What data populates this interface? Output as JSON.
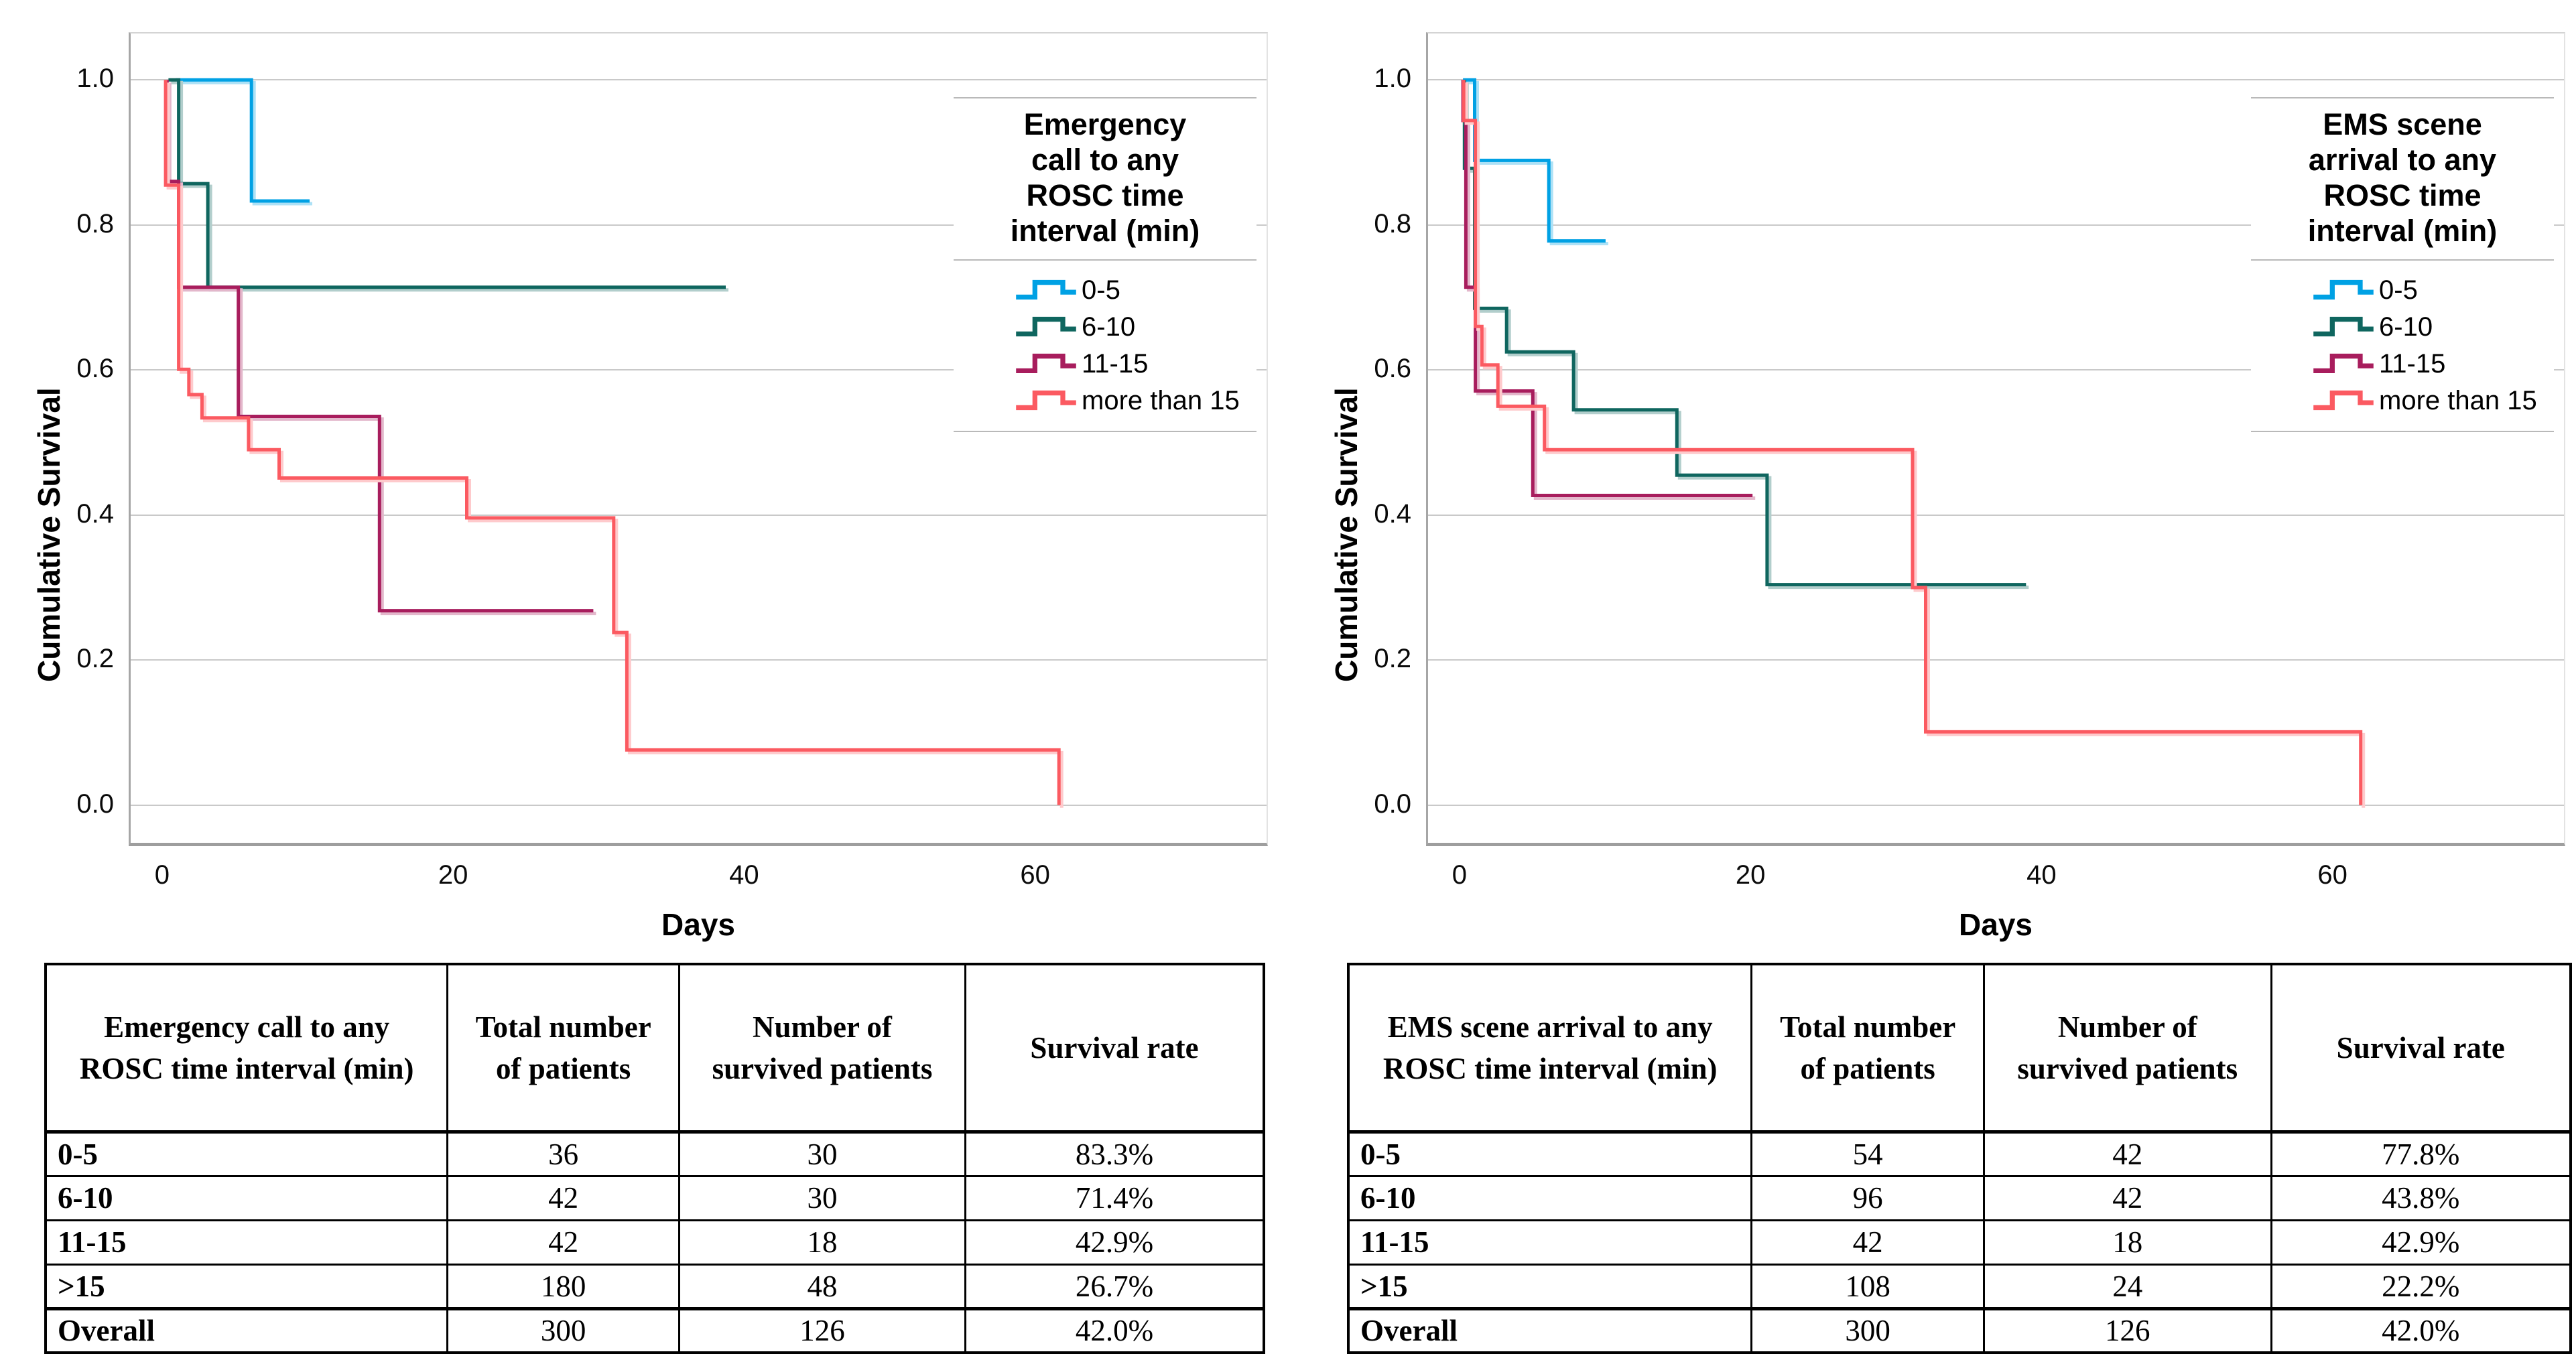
{
  "chart_data": [
    {
      "type": "line",
      "subtype": "kaplan-meier-step",
      "y_axis_label": "Cumulative Survival",
      "x_axis_label": "Days",
      "legend_title": "Emergency call to any ROSC time interval (min)",
      "legend_title_lines": [
        "Emergency",
        "call to any",
        "ROSC time",
        "interval (min)"
      ],
      "legend_position": "inside-top-right",
      "grid": "horizontal",
      "xlim": [
        -2.3,
        76.0
      ],
      "ylim": [
        -0.0585,
        1.064
      ],
      "x_ticks": [
        {
          "v": 0,
          "label": "0"
        },
        {
          "v": 20,
          "label": "20"
        },
        {
          "v": 40,
          "label": "40"
        },
        {
          "v": 60,
          "label": "60"
        }
      ],
      "y_ticks": [
        {
          "v": 1.0,
          "label": "1.0"
        },
        {
          "v": 0.8,
          "label": "0.8"
        },
        {
          "v": 0.6,
          "label": "0.6"
        },
        {
          "v": 0.4,
          "label": "0.4"
        },
        {
          "v": 0.2,
          "label": "0.2"
        },
        {
          "v": 0.0,
          "label": "0.0"
        }
      ],
      "series": [
        {
          "label": "0-5",
          "color": "#00A1E4",
          "points": [
            [
              0.8,
              1.0
            ],
            [
              6,
              1.0
            ],
            [
              6,
              0.833
            ],
            [
              10,
              0.833
            ]
          ]
        },
        {
          "label": "6-10",
          "color": "#0F665F",
          "points": [
            [
              0.3,
              1.0
            ],
            [
              1,
              1.0
            ],
            [
              1,
              0.857
            ],
            [
              3,
              0.857
            ],
            [
              3,
              0.714
            ],
            [
              38.6,
              0.714
            ]
          ]
        },
        {
          "label": "11-15",
          "color": "#A81D5D",
          "points": [
            [
              0.2,
              1.0
            ],
            [
              0.2,
              0.86
            ],
            [
              1,
              0.86
            ],
            [
              1,
              0.714
            ],
            [
              5.1,
              0.714
            ],
            [
              5.1,
              0.536
            ],
            [
              14.8,
              0.536
            ],
            [
              14.8,
              0.268
            ],
            [
              29.5,
              0.268
            ]
          ]
        },
        {
          "label": "more than 15",
          "color": "#FB5A61",
          "points": [
            [
              0.1,
              1.0
            ],
            [
              0.1,
              0.855
            ],
            [
              1,
              0.855
            ],
            [
              1,
              0.601
            ],
            [
              1.7,
              0.601
            ],
            [
              1.7,
              0.566
            ],
            [
              2.6,
              0.566
            ],
            [
              2.6,
              0.534
            ],
            [
              5.8,
              0.534
            ],
            [
              5.8,
              0.49
            ],
            [
              7.9,
              0.49
            ],
            [
              7.9,
              0.451
            ],
            [
              20.8,
              0.451
            ],
            [
              20.8,
              0.396
            ],
            [
              30.9,
              0.396
            ],
            [
              30.9,
              0.238
            ],
            [
              31.8,
              0.238
            ],
            [
              31.8,
              0.076
            ],
            [
              61.5,
              0.076
            ],
            [
              61.5,
              0.0
            ]
          ]
        }
      ]
    },
    {
      "type": "line",
      "subtype": "kaplan-meier-step",
      "y_axis_label": "Cumulative Survival",
      "x_axis_label": "Days",
      "legend_title": "EMS scene arrival to any ROSC time interval (min)",
      "legend_title_lines": [
        "EMS scene",
        "arrival to any",
        "ROSC time",
        "interval (min)"
      ],
      "legend_position": "inside-top-right",
      "grid": "horizontal",
      "xlim": [
        -2.3,
        76.0
      ],
      "ylim": [
        -0.0585,
        1.064
      ],
      "x_ticks": [
        {
          "v": 0,
          "label": "0"
        },
        {
          "v": 20,
          "label": "20"
        },
        {
          "v": 40,
          "label": "40"
        },
        {
          "v": 60,
          "label": "60"
        }
      ],
      "y_ticks": [
        {
          "v": 1.0,
          "label": "1.0"
        },
        {
          "v": 0.8,
          "label": "0.8"
        },
        {
          "v": 0.6,
          "label": "0.6"
        },
        {
          "v": 0.4,
          "label": "0.4"
        },
        {
          "v": 0.2,
          "label": "0.2"
        },
        {
          "v": 0.0,
          "label": "0.0"
        }
      ],
      "series": [
        {
          "label": "0-5",
          "color": "#00A1E4",
          "points": [
            [
              0.1,
              1.0
            ],
            [
              0.9,
              1.0
            ],
            [
              0.9,
              0.889
            ],
            [
              6,
              0.889
            ],
            [
              6,
              0.778
            ],
            [
              9.9,
              0.778
            ]
          ]
        },
        {
          "label": "6-10",
          "color": "#0F665F",
          "points": [
            [
              0.2,
              1.0
            ],
            [
              0.2,
              0.878
            ],
            [
              0.9,
              0.878
            ],
            [
              0.9,
              0.685
            ],
            [
              3.1,
              0.685
            ],
            [
              3.1,
              0.625
            ],
            [
              7.7,
              0.625
            ],
            [
              7.7,
              0.545
            ],
            [
              14.8,
              0.545
            ],
            [
              14.8,
              0.455
            ],
            [
              21,
              0.455
            ],
            [
              21,
              0.304
            ],
            [
              38.8,
              0.304
            ]
          ]
        },
        {
          "label": "11-15",
          "color": "#A81D5D",
          "points": [
            [
              0.1,
              1.0
            ],
            [
              0.1,
              0.944
            ],
            [
              0.3,
              0.944
            ],
            [
              0.3,
              0.714
            ],
            [
              0.95,
              0.714
            ],
            [
              0.95,
              0.571
            ],
            [
              4.9,
              0.571
            ],
            [
              4.9,
              0.427
            ],
            [
              20,
              0.427
            ]
          ]
        },
        {
          "label": "more than 15",
          "color": "#FB5A61",
          "points": [
            [
              0.15,
              1.0
            ],
            [
              0.15,
              0.944
            ],
            [
              0.95,
              0.944
            ],
            [
              0.95,
              0.66
            ],
            [
              1.4,
              0.66
            ],
            [
              1.4,
              0.607
            ],
            [
              2.5,
              0.607
            ],
            [
              2.5,
              0.55
            ],
            [
              5.7,
              0.55
            ],
            [
              5.7,
              0.49
            ],
            [
              31,
              0.49
            ],
            [
              31,
              0.3
            ],
            [
              31.9,
              0.3
            ],
            [
              31.9,
              0.101
            ],
            [
              61.8,
              0.101
            ],
            [
              61.8,
              0.0
            ]
          ]
        }
      ]
    }
  ],
  "style": {
    "grid_color": "#c9c9c9",
    "axis_color": "#9e9e9e",
    "legend_rule_color": "#b9b9b9",
    "series_colors": {
      "0-5": "#00A1E4",
      "6-10": "#0F665F",
      "11-15": "#A81D5D",
      "more than 15": "#FB5A61"
    }
  },
  "tables": [
    {
      "headers": [
        "Emergency call to any ROSC time interval (min)",
        "Total number of patients",
        "Number of survived patients",
        "Survival rate"
      ],
      "rows": [
        [
          "0-5",
          "36",
          "30",
          "83.3%"
        ],
        [
          "6-10",
          "42",
          "30",
          "71.4%"
        ],
        [
          "11-15",
          "42",
          "18",
          "42.9%"
        ],
        [
          ">15",
          "180",
          "48",
          "26.7%"
        ],
        [
          "Overall",
          "300",
          "126",
          "42.0%"
        ]
      ]
    },
    {
      "headers": [
        "EMS scene arrival to any ROSC time interval (min)",
        "Total number of patients",
        "Number of survived patients",
        "Survival rate"
      ],
      "rows": [
        [
          "0-5",
          "54",
          "42",
          "77.8%"
        ],
        [
          "6-10",
          "96",
          "42",
          "43.8%"
        ],
        [
          "11-15",
          "42",
          "18",
          "42.9%"
        ],
        [
          ">15",
          "108",
          "24",
          "22.2%"
        ],
        [
          "Overall",
          "300",
          "126",
          "42.0%"
        ]
      ]
    }
  ]
}
